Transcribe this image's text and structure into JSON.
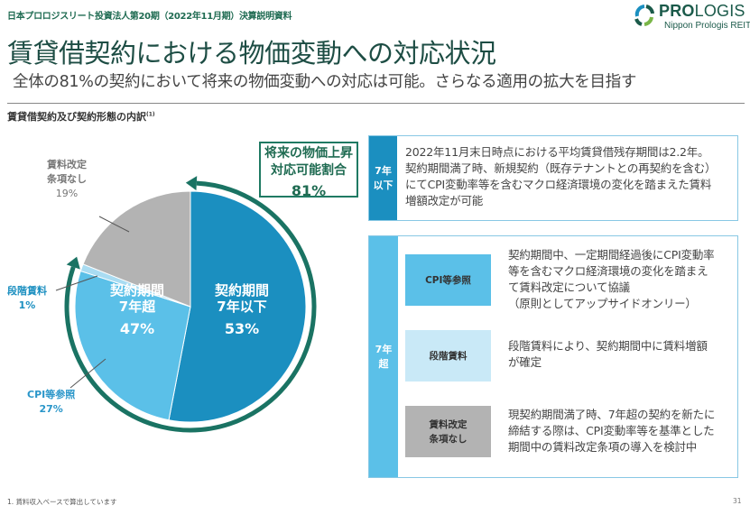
{
  "header": {
    "doc_title": "日本プロロジスリート投資法人第20期（2022年11月期）決算説明資料",
    "logo_word_bold": "PRO",
    "logo_word_light": "LOGIS",
    "logo_sub": "Nippon Prologis REIT"
  },
  "title": "賃貸借契約における物価変動への対応状況",
  "subtitle": "全体の81%の契約において将来の物価変動への対応は可能。さらなる適用の拡大を目指す",
  "section": {
    "heading": "賃貸借契約及び契約形態の内訳",
    "footnote_ref": "(1)"
  },
  "chart_data": {
    "type": "pie",
    "slices": [
      {
        "name": "契約期間7年以下",
        "value": 53,
        "color": "#1b8fc0"
      },
      {
        "name": "CPI等参照",
        "value": 27,
        "color": "#5bc0e8"
      },
      {
        "name": "段階賃料",
        "value": 1,
        "color": "#a9dcf2"
      },
      {
        "name": "賃料改定条項なし",
        "value": 19,
        "color": "#b3b3b3"
      }
    ],
    "labels": {
      "no_revision": {
        "line1": "賃料改定",
        "line2": "条項なし",
        "pct": "19%"
      },
      "step_rent": {
        "line1": "段階賃料",
        "pct": "1%"
      },
      "cpi": {
        "line1": "CPI等参照",
        "pct": "27%"
      },
      "over7": {
        "line1": "契約期間",
        "line2": "7年超",
        "pct": "47%"
      },
      "under7": {
        "line1": "契約期間",
        "line2": "7年以下",
        "pct": "53%"
      }
    },
    "arc_color": "#1a7363"
  },
  "callout": {
    "line1": "将来の物価上昇",
    "line2": "対応可能割合",
    "pct": "81%"
  },
  "box1": {
    "tab_line1": "7年",
    "tab_line2": "以下",
    "lines": [
      "2022年11月末日時点における平均賃貸借残存期間は2.2年。",
      "契約期間満了時、新規契約（既存テナントとの再契約を含む）",
      "にてCPI変動率等を含むマクロ経済環境の変化を踏まえた賃料",
      "増額改定が可能"
    ]
  },
  "box2": {
    "tab_line1": "7年",
    "tab_line2": "超",
    "rows": [
      {
        "label": "CPI等参照",
        "label2": "",
        "color": "#5bc0e8",
        "desc": "契約期間中、一定期間経過後にCPI変動率\n等を含むマクロ経済環境の変化を踏まえ\nて賃料改定について協議\n（原則としてアップサイドオンリー）"
      },
      {
        "label": "段階賃料",
        "label2": "",
        "color": "#c9e9f7",
        "desc": "段階賃料により、契約期間中に賃料増額\nが確定"
      },
      {
        "label": "賃料改定",
        "label2": "条項なし",
        "color": "#b3b3b3",
        "desc": "現契約期間満了時、7年超の契約を新たに\n締結する際は、CPI変動率等を基準とした\n期間中の賃料改定条項の導入を検討中"
      }
    ]
  },
  "footnote": "1.  賃料収入ベースで算出しています",
  "page_number": "31"
}
